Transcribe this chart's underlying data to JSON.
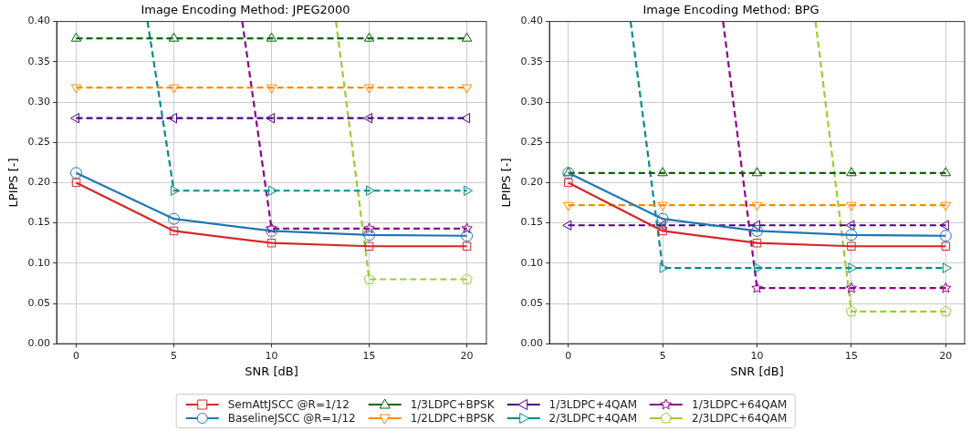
{
  "chart_data": [
    {
      "type": "line",
      "title": "Image Encoding Method: JPEG2000",
      "xlabel": "SNR [dB]",
      "ylabel": "LPIPS [-]",
      "xlim": [
        -1,
        21
      ],
      "xticks": [
        0,
        5,
        10,
        15,
        20
      ],
      "ylim": [
        0,
        0.4
      ],
      "yticks": [
        {
          "value": 0,
          "label": "0.00"
        },
        {
          "value": 0.05,
          "label": "0.05"
        },
        {
          "value": 0.1,
          "label": "0.10"
        },
        {
          "value": 0.15,
          "label": "0.15"
        },
        {
          "value": 0.2,
          "label": "0.20"
        },
        {
          "value": 0.25,
          "label": "0.25"
        },
        {
          "value": 0.3,
          "label": "0.30"
        },
        {
          "value": 0.35,
          "label": "0.35"
        },
        {
          "value": 0.4,
          "label": "0.40"
        }
      ],
      "grid": true,
      "legend": "bottom",
      "x": [
        0,
        5,
        10,
        15,
        20
      ],
      "series": [
        {
          "name": "SemAttJSCC @R=1/12",
          "color": "#d62728",
          "marker": "square",
          "line_style": "solid",
          "values": [
            0.2,
            0.14,
            0.125,
            0.121,
            0.121
          ]
        },
        {
          "name": "BaselineJSCC @R=1/12",
          "color": "#1f77b4",
          "marker": "circle",
          "line_style": "solid",
          "values": [
            0.212,
            0.155,
            0.14,
            0.135,
            0.134
          ]
        },
        {
          "name": "1/3LDPC+BPSK",
          "color": "#006400",
          "marker": "triangle",
          "line_style": "dashed",
          "values": [
            0.379,
            0.379,
            0.379,
            0.379,
            0.379
          ]
        },
        {
          "name": "1/2LDPC+BPSK",
          "color": "#ff8c00",
          "marker": "triangle-down",
          "line_style": "dashed",
          "values": [
            0.318,
            0.318,
            0.318,
            0.318,
            0.318
          ]
        },
        {
          "name": "1/3LDPC+4QAM",
          "color": "#4b0082",
          "marker": "triangle-left",
          "line_style": "dashed",
          "values": [
            0.28,
            0.28,
            0.28,
            0.28,
            0.28
          ]
        },
        {
          "name": "2/3LDPC+4QAM",
          "color": "#008b8b",
          "marker": "triangle-right",
          "line_style": "dashed",
          "x": [
            3.65,
            5,
            10,
            15,
            20
          ],
          "values": [
            0.4,
            0.19,
            0.19,
            0.19,
            0.19
          ]
        },
        {
          "name": "1/3LDPC+64QAM",
          "color": "#8b008b",
          "marker": "star",
          "line_style": "dashed",
          "x": [
            8.5,
            10,
            15,
            20
          ],
          "values": [
            0.4,
            0.143,
            0.143,
            0.143
          ]
        },
        {
          "name": "2/3LDPC+64QAM",
          "color": "#9acd32",
          "line_style": "dashed",
          "x": [
            13.3,
            15,
            20
          ],
          "values": [
            0.4,
            0.08,
            0.08
          ]
        }
      ]
    },
    {
      "type": "line",
      "title": "Image Encoding Method: BPG",
      "xlabel": "SNR [dB]",
      "ylabel": "LPIPS [-]",
      "xlim": [
        -1,
        21
      ],
      "xticks": [
        0,
        5,
        10,
        15,
        20
      ],
      "ylim": [
        0,
        0.4
      ],
      "yticks": [
        {
          "value": 0,
          "label": "0.00"
        },
        {
          "value": 0.05,
          "label": "0.05"
        },
        {
          "value": 0.1,
          "label": "0.10"
        },
        {
          "value": 0.15,
          "label": "0.15"
        },
        {
          "value": 0.2,
          "label": "0.20"
        },
        {
          "value": 0.25,
          "label": "0.25"
        },
        {
          "value": 0.3,
          "label": "0.30"
        },
        {
          "value": 0.35,
          "label": "0.35"
        },
        {
          "value": 0.4,
          "label": "0.40"
        }
      ],
      "grid": true,
      "legend": "bottom",
      "x": [
        0,
        5,
        10,
        15,
        20
      ],
      "series": [
        {
          "name": "SemAttJSCC @R=1/12",
          "color": "#d62728",
          "marker": "square",
          "line_style": "solid",
          "values": [
            0.2,
            0.14,
            0.125,
            0.121,
            0.121
          ]
        },
        {
          "name": "BaselineJSCC @R=1/12",
          "color": "#1f77b4",
          "marker": "circle",
          "line_style": "solid",
          "values": [
            0.212,
            0.155,
            0.14,
            0.135,
            0.134
          ]
        },
        {
          "name": "1/3LDPC+BPSK",
          "color": "#006400",
          "marker": "triangle",
          "line_style": "dashed",
          "values": [
            0.212,
            0.212,
            0.212,
            0.212,
            0.212
          ]
        },
        {
          "name": "1/2LDPC+BPSK",
          "color": "#ff8c00",
          "marker": "triangle-down",
          "line_style": "dashed",
          "values": [
            0.172,
            0.172,
            0.172,
            0.172,
            0.172
          ]
        },
        {
          "name": "1/3LDPC+4QAM",
          "color": "#4b0082",
          "marker": "triangle-left",
          "line_style": "dashed",
          "values": [
            0.147,
            0.147,
            0.147,
            0.147,
            0.147
          ]
        },
        {
          "name": "2/3LDPC+4QAM",
          "color": "#008b8b",
          "marker": "triangle-right",
          "line_style": "dashed",
          "x": [
            3.3,
            5,
            10,
            15,
            20
          ],
          "values": [
            0.4,
            0.094,
            0.094,
            0.094,
            0.094
          ]
        },
        {
          "name": "1/3LDPC+64QAM",
          "color": "#8b008b",
          "marker": "star",
          "line_style": "dashed",
          "x": [
            8.2,
            10,
            15,
            20
          ],
          "values": [
            0.4,
            0.069,
            0.069,
            0.069
          ]
        },
        {
          "name": "2/3LDPC+64QAM",
          "color": "#9acd32",
          "line_style": "dashed",
          "x": [
            13.1,
            15,
            20
          ],
          "values": [
            0.4,
            0.04,
            0.04
          ]
        }
      ]
    }
  ]
}
